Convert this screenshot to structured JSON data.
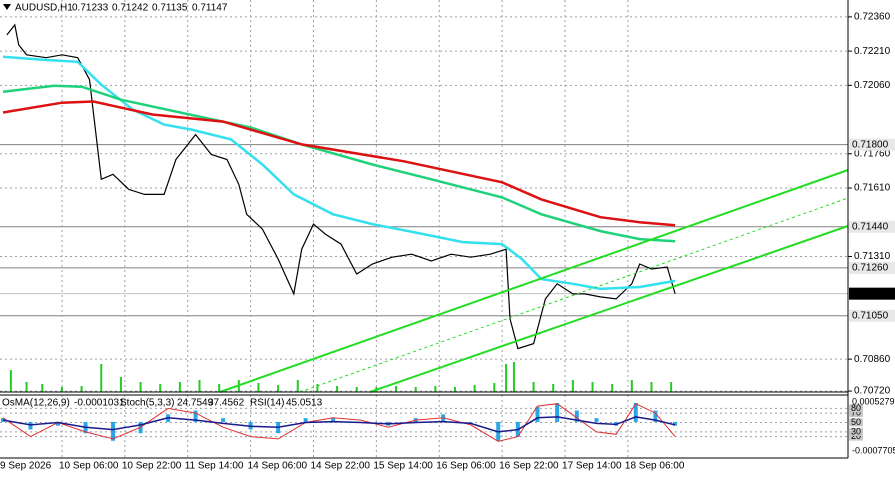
{
  "chart_data": {
    "type": "line",
    "title": "AUDUSD,H1",
    "quote": [
      0.71233,
      0.71242,
      0.71135,
      0.71147
    ],
    "xlim": [
      0,
      215
    ],
    "ylim": [
      0.70716,
      0.72434
    ],
    "yticks": [
      {
        "value": 0.7236,
        "label": "0.72360"
      },
      {
        "value": 0.7221,
        "label": "0.72210"
      },
      {
        "value": 0.7206,
        "label": "0.72060"
      },
      {
        "value": 0.7176,
        "label": "0.71760"
      },
      {
        "value": 0.7161,
        "label": "0.71610"
      },
      {
        "value": 0.7131,
        "label": "0.71310"
      },
      {
        "value": 0.7086,
        "label": "0.70860"
      },
      {
        "value": 0.7072,
        "label": "0.70720"
      }
    ],
    "levels": [
      {
        "value": 0.718,
        "label": "0.71800"
      },
      {
        "value": 0.7144,
        "label": "0.71440"
      },
      {
        "value": 0.7126,
        "label": "0.71260"
      },
      0.71147,
      {
        "value": 0.7105,
        "label": "0.71050"
      }
    ],
    "xticks": [
      {
        "value": 0,
        "label": "9 Sep 2026"
      },
      {
        "value": 15,
        "label": "10 Sep 06:00"
      },
      {
        "value": 31,
        "label": "10 Sep 22:00"
      },
      {
        "value": 47,
        "label": "11 Sep 14:00"
      },
      {
        "value": 63,
        "label": "14 Sep 06:00"
      },
      {
        "value": 79,
        "label": "14 Sep 22:00"
      },
      {
        "value": 95,
        "label": "15 Sep 14:00"
      },
      {
        "value": 111,
        "label": "16 Sep 06:00"
      },
      {
        "value": 127,
        "label": "16 Sep 22:00"
      },
      {
        "value": 143,
        "label": "17 Sep 14:00"
      },
      {
        "value": 159,
        "label": "18 Sep 06:00"
      }
    ],
    "grid": true,
    "series": [
      {
        "color": "#000000",
        "x": [
          1,
          3,
          4,
          6,
          11,
          15,
          19,
          22,
          25,
          28,
          32,
          36,
          41,
          44,
          49,
          53,
          57,
          60,
          62,
          66,
          70,
          74,
          76,
          79,
          82,
          86,
          90,
          94,
          99,
          104,
          109,
          114,
          119,
          124,
          128,
          129,
          131,
          135,
          138,
          141,
          145,
          148,
          152,
          156,
          160,
          162,
          165,
          169,
          171
        ],
        "values": [
          0.72281,
          0.72325,
          0.72237,
          0.72194,
          0.72181,
          0.72194,
          0.72181,
          0.72085,
          0.71648,
          0.7167,
          0.71604,
          0.71582,
          0.71582,
          0.71735,
          0.71844,
          0.71757,
          0.71735,
          0.71626,
          0.71495,
          0.7143,
          0.71299,
          0.71146,
          0.71342,
          0.71452,
          0.71408,
          0.71364,
          0.71233,
          0.71277,
          0.71307,
          0.7132,
          0.7129,
          0.7132,
          0.71307,
          0.7132,
          0.71342,
          0.71037,
          0.70906,
          0.70928,
          0.71124,
          0.7119,
          0.71146,
          0.71146,
          0.71133,
          0.71124,
          0.7119,
          0.71277,
          0.71255,
          0.71264,
          0.71147
        ]
      },
      {
        "color": "#33e0ee",
        "x": [
          0,
          10,
          19,
          25,
          33,
          41,
          48,
          58,
          66,
          74,
          84,
          94,
          107,
          117,
          127,
          132,
          137,
          145,
          152,
          162,
          171
        ],
        "values": [
          0.72185,
          0.72172,
          0.72163,
          0.72063,
          0.71954,
          0.71888,
          0.71866,
          0.71823,
          0.71713,
          0.71582,
          0.71495,
          0.71452,
          0.71408,
          0.71373,
          0.71364,
          0.71299,
          0.71211,
          0.7119,
          0.71168,
          0.71176,
          0.71203
        ]
      },
      {
        "color": "#1fd27a",
        "x": [
          0,
          13,
          20,
          30,
          51,
          63,
          76,
          94,
          109,
          127,
          137,
          152,
          162,
          171
        ],
        "values": [
          0.72032,
          0.72058,
          0.72054,
          0.71997,
          0.71919,
          0.71875,
          0.71801,
          0.71713,
          0.71648,
          0.71569,
          0.71495,
          0.71421,
          0.71386,
          0.71377
        ]
      },
      {
        "color": "#dd1111",
        "x": [
          0,
          15,
          23,
          38,
          56,
          76,
          102,
          127,
          137,
          152,
          162,
          171
        ],
        "values": [
          0.71941,
          0.71984,
          0.71989,
          0.71932,
          0.71901,
          0.71801,
          0.71727,
          0.71635,
          0.7156,
          0.71482,
          0.7146,
          0.71447
        ]
      }
    ],
    "volume": {
      "color": "#22cc22",
      "vlim": [
        0,
        40
      ],
      "x": [
        2,
        6,
        10,
        15,
        20,
        25,
        30,
        35,
        40,
        45,
        50,
        55,
        60,
        65,
        70,
        75,
        80,
        85,
        90,
        95,
        100,
        105,
        110,
        115,
        120,
        125,
        128,
        130,
        135,
        140,
        145,
        150,
        155,
        160,
        165,
        170
      ],
      "values": [
        22,
        10,
        8,
        5,
        6,
        28,
        15,
        10,
        8,
        10,
        12,
        8,
        12,
        9,
        7,
        12,
        8,
        6,
        5,
        5,
        6,
        5,
        6,
        5,
        7,
        9,
        28,
        30,
        10,
        8,
        12,
        10,
        8,
        12,
        10,
        10
      ]
    },
    "oscillator": {
      "osma_label": "OsMA(12,26,9)",
      "osma_value": -0.0001031,
      "stoch_label": "Stoch(5,3,3)",
      "stoch_values": [
        24.7549,
        37.4562
      ],
      "rsi_label": "RSI(14)",
      "rsi_value": 45.0513,
      "osma_lim": [
        -0.0007705,
        0.0005279
      ],
      "osc_lim": [
        0,
        100
      ],
      "osc_levels": [
        20,
        30,
        50,
        70,
        80
      ],
      "x": [
        0,
        7,
        14,
        21,
        28,
        35,
        42,
        49,
        56,
        63,
        70,
        77,
        84,
        91,
        98,
        105,
        112,
        119,
        126,
        131,
        136,
        141,
        146,
        151,
        156,
        161,
        166,
        171
      ],
      "osma": [
        0.0001,
        -0.0002,
        -0.0001,
        -0.0003,
        -0.0005,
        -0.0003,
        0.0002,
        0.0003,
        0.0001,
        -0.0002,
        -0.0003,
        0.0001,
        0.0001,
        0,
        -0.0001,
        0.0001,
        0.0002,
        0,
        -0.0005,
        -0.0004,
        0.0004,
        0.0005,
        0.0003,
        0.0001,
        -0.0001,
        0.0005,
        0.0003,
        -0.0001
      ],
      "stoch": [
        60,
        20,
        50,
        30,
        15,
        40,
        80,
        70,
        40,
        20,
        15,
        50,
        60,
        55,
        40,
        55,
        60,
        45,
        10,
        20,
        85,
        90,
        60,
        30,
        25,
        90,
        70,
        20
      ],
      "rsi": [
        55,
        45,
        50,
        40,
        35,
        45,
        60,
        55,
        48,
        42,
        40,
        50,
        52,
        50,
        47,
        50,
        52,
        48,
        30,
        35,
        60,
        62,
        55,
        48,
        46,
        62,
        55,
        45
      ]
    }
  }
}
